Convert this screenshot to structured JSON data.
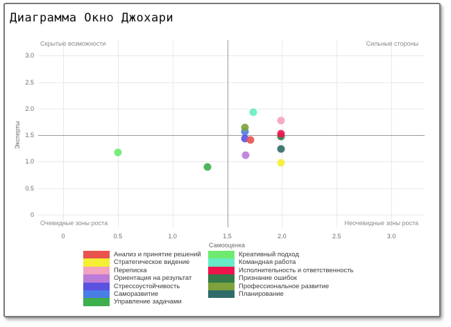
{
  "window": {
    "title": "Диаграмма Окно Джохари"
  },
  "chart_data": {
    "type": "scatter",
    "title": "Диаграмма Окно Джохари",
    "xlabel": "Самооценка",
    "ylabel": "Эксперты",
    "x_ticks": [
      "0",
      "0.5",
      "1.0",
      "1.5",
      "2.0",
      "2.5",
      "3.0"
    ],
    "y_ticks": [
      "0",
      "0.5",
      "1.0",
      "1.5",
      "2.0",
      "2.5",
      "3.0"
    ],
    "x_tick_values": [
      0,
      0.5,
      1,
      1.5,
      2,
      2.5,
      3
    ],
    "y_tick_values": [
      0,
      0.5,
      1,
      1.5,
      2,
      2.5,
      3
    ],
    "xlim": [
      -0.23,
      3.3
    ],
    "ylim": [
      -0.24,
      3.28
    ],
    "grid": true,
    "quadrant_dividers": {
      "x": 1.5,
      "y": 1.5
    },
    "quadrant_labels": {
      "top_left": "Скрытые возможности",
      "top_right": "Сильные стороны",
      "bottom_left": "Очевидные зоны роста",
      "bottom_right": "Неочевидные зоны роста"
    },
    "legend_left_count": 7,
    "items": [
      {
        "label": "Анализ и принятие решений",
        "color": "#e8534e",
        "x": 1.71,
        "y": 1.41,
        "z": 10
      },
      {
        "label": "Стратегическое видение",
        "color": "#f4ee35",
        "x": 1.99,
        "y": 0.98,
        "z": 13
      },
      {
        "label": "Переписка",
        "color": "#f2a3bd",
        "x": 1.99,
        "y": 1.78,
        "z": 4
      },
      {
        "label": "Ориентация на результат",
        "color": "#bd7bd8",
        "x": 1.67,
        "y": 1.12,
        "z": 12
      },
      {
        "label": "Стрессоустойчивость",
        "color": "#5b52e2",
        "x": 1.66,
        "y": 1.43,
        "z": 9
      },
      {
        "label": "Саморазвитие",
        "color": "#4a7de6",
        "x": 1.66,
        "y": 1.57,
        "z": 5
      },
      {
        "label": "Управление задачами",
        "color": "#3fae4d",
        "x": 1.32,
        "y": 0.9,
        "z": 2
      },
      {
        "label": "Креативный подход",
        "color": "#6fe96f",
        "x": 0.5,
        "y": 1.18,
        "z": 1
      },
      {
        "label": "Командная работа",
        "color": "#66ecc6",
        "x": 1.74,
        "y": 1.93,
        "z": 3
      },
      {
        "label": "Исполнительность и ответственность",
        "color": "#f0144d",
        "x": 1.99,
        "y": 1.53,
        "z": 8
      },
      {
        "label": "Признание ошибок",
        "color": "#36794a",
        "x": 1.99,
        "y": 1.47,
        "z": 7
      },
      {
        "label": "Профессиональное развитие",
        "color": "#7ea23c",
        "x": 1.66,
        "y": 1.64,
        "z": 6
      },
      {
        "label": "Планирование",
        "color": "#2f6b68",
        "x": 1.99,
        "y": 1.24,
        "z": 11
      }
    ]
  },
  "colors": {
    "gridline": "#e8e8e8",
    "divider": "#9a9a9a",
    "tick_text": "#6b6b6b",
    "quadrant_text": "#8a8a8a",
    "legend_text": "#3a3a3a",
    "frame_border": "#787878"
  }
}
